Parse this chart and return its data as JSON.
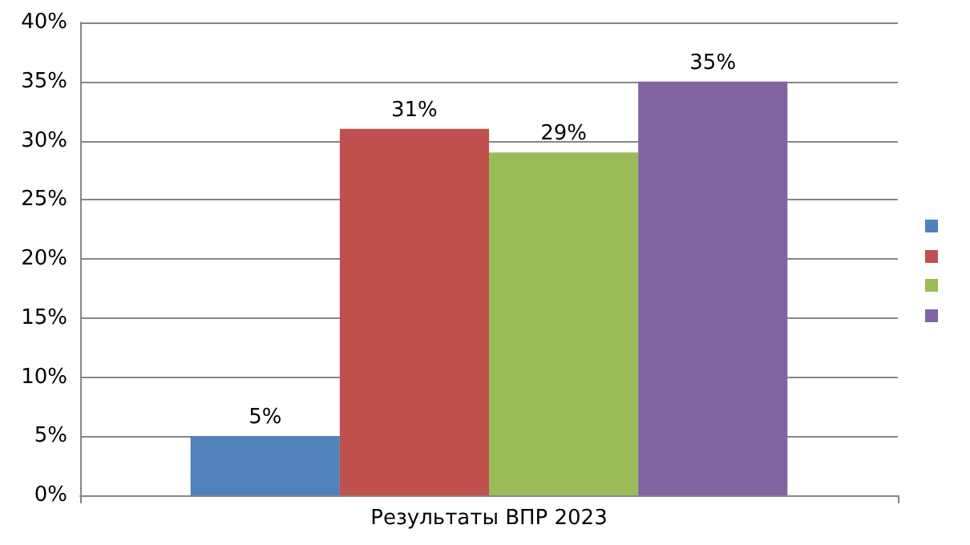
{
  "chart_data": {
    "type": "bar",
    "categories": [
      "Результаты ВПР 2023"
    ],
    "series": [
      {
        "color": "#4f81bd",
        "values": [
          5
        ],
        "value_labels": [
          "5%"
        ]
      },
      {
        "color": "#c0504d",
        "values": [
          31
        ],
        "value_labels": [
          "31%"
        ]
      },
      {
        "color": "#9bbb59",
        "values": [
          29
        ],
        "value_labels": [
          "29%"
        ]
      },
      {
        "color": "#8064a2",
        "values": [
          35
        ],
        "value_labels": [
          "35%"
        ]
      }
    ],
    "ylim": [
      0,
      40
    ],
    "yticks": [
      {
        "value": 0,
        "label": "0%"
      },
      {
        "value": 5,
        "label": "5%"
      },
      {
        "value": 10,
        "label": "10%"
      },
      {
        "value": 15,
        "label": "15%"
      },
      {
        "value": 20,
        "label": "20%"
      },
      {
        "value": 25,
        "label": "25%"
      },
      {
        "value": 30,
        "label": "30%"
      },
      {
        "value": 35,
        "label": "35%"
      },
      {
        "value": 40,
        "label": "40%"
      }
    ],
    "grid": "y"
  }
}
